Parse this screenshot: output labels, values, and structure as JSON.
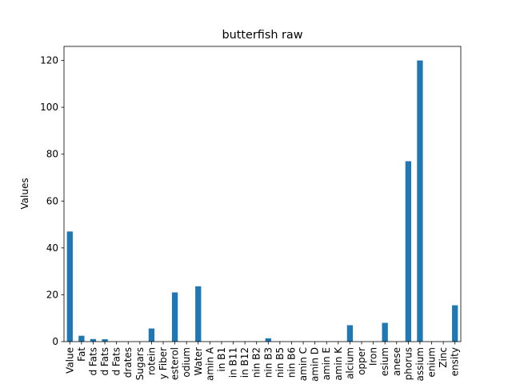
{
  "chart_data": {
    "type": "bar",
    "title": "butterfish raw",
    "xlabel": "",
    "ylabel": "Values",
    "ylim": [
      0,
      126
    ],
    "yticks": [
      0,
      20,
      40,
      60,
      80,
      100,
      120
    ],
    "grid": false,
    "legend": "none",
    "bar_color": "#1f77b4",
    "categories": [
      "Value",
      "Fat",
      "d Fats",
      "d Fats",
      "d Fats",
      "drates",
      "Sugars",
      "rotein",
      "y Fiber",
      "esterol",
      "odium",
      "Water",
      "amin A",
      "in B1",
      "in B11",
      "in B12",
      "nin B2",
      "nin B3",
      "nin B5",
      "nin B6",
      "amin C",
      "amin D",
      "amin E",
      "amin K",
      "alcium",
      "opper",
      "Iron",
      "esium",
      "anese",
      "phorus",
      "assium",
      "enium",
      "Zinc",
      "ensity"
    ],
    "values": [
      47,
      2.5,
      1.1,
      1.0,
      0,
      0,
      0,
      5.6,
      0,
      21,
      0,
      23.6,
      0,
      0,
      0,
      0,
      0,
      1.4,
      0,
      0,
      0,
      0,
      0,
      0,
      7,
      0,
      0,
      8,
      0,
      77,
      120,
      0,
      0,
      15.5
    ]
  }
}
